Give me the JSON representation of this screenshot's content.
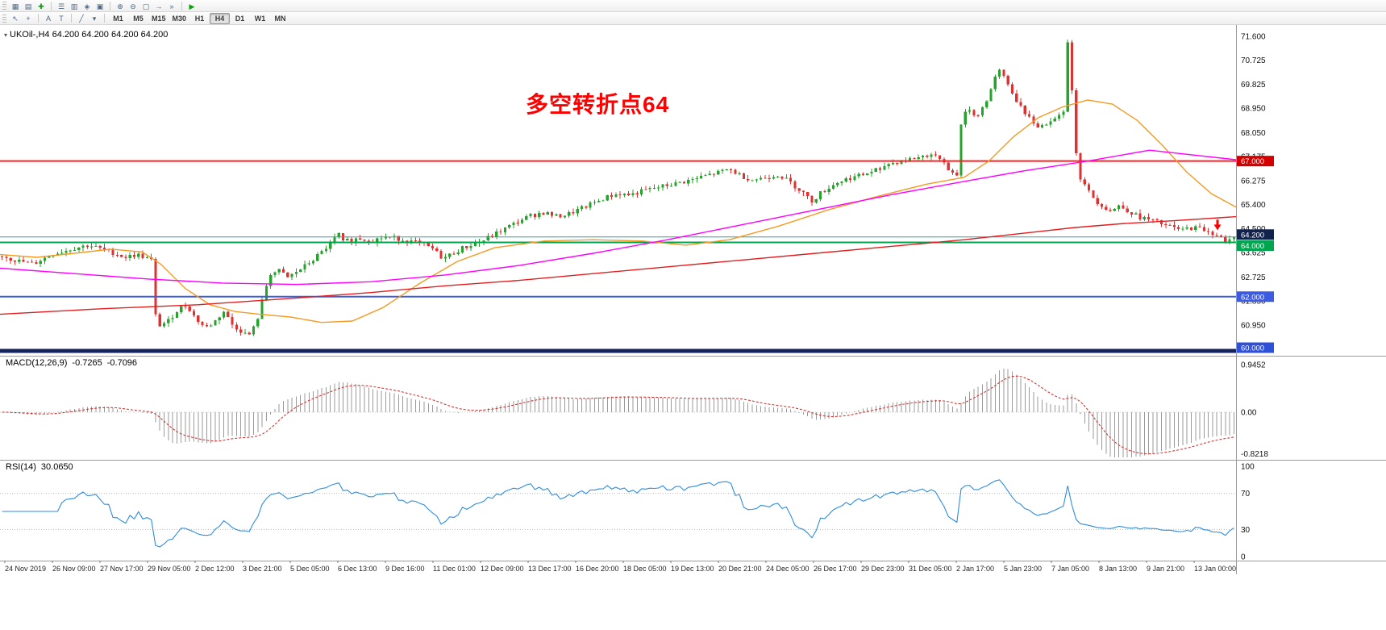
{
  "toolbar_top": {
    "groups": [
      [
        {
          "name": "new-chart",
          "glyph": "▦"
        },
        {
          "name": "chart-profiles",
          "glyph": "▤"
        },
        {
          "name": "new-order",
          "glyph": "✚",
          "color": "#0d9d0d"
        }
      ],
      [
        {
          "name": "market-watch",
          "glyph": "☰"
        },
        {
          "name": "data-window",
          "glyph": "▥"
        },
        {
          "name": "navigator",
          "glyph": "◈"
        },
        {
          "name": "terminal",
          "glyph": "▣"
        }
      ],
      [
        {
          "name": "zoom-in",
          "glyph": "⊕"
        },
        {
          "name": "zoom-out",
          "glyph": "⊖"
        },
        {
          "name": "tile-windows",
          "glyph": "▢"
        },
        {
          "name": "auto-scroll",
          "glyph": "→"
        },
        {
          "name": "chart-shift",
          "glyph": "»"
        }
      ],
      [
        {
          "name": "auto-trading",
          "glyph": "▶",
          "color": "#0d9d0d"
        }
      ]
    ]
  },
  "toolbar_periods": {
    "left_groups": [
      [
        {
          "name": "cursor",
          "glyph": "↖"
        },
        {
          "name": "crosshair",
          "glyph": "+"
        }
      ],
      [
        {
          "name": "text-annotation",
          "glyph": "A"
        },
        {
          "name": "text-label",
          "glyph": "T"
        }
      ],
      [
        {
          "name": "draw-trendline",
          "glyph": "╱"
        },
        {
          "name": "shapes-dropdown",
          "glyph": "▾"
        }
      ]
    ],
    "timeframes": [
      {
        "label": "M1",
        "active": false
      },
      {
        "label": "M5",
        "active": false
      },
      {
        "label": "M15",
        "active": false
      },
      {
        "label": "M30",
        "active": false
      },
      {
        "label": "H1",
        "active": false
      },
      {
        "label": "H4",
        "active": true
      },
      {
        "label": "D1",
        "active": false
      },
      {
        "label": "W1",
        "active": false
      },
      {
        "label": "MN",
        "active": false
      }
    ]
  },
  "chart": {
    "header_text": "UKOil-,H4 64.200 64.200 64.200 64.200",
    "dropdown_glyph": "▾",
    "annotation": {
      "text": "多空转折点64",
      "color": "#FF0000"
    }
  },
  "chart_data": {
    "type": "candlestick",
    "symbol": "UKOil-",
    "period": "H4",
    "ohlc_header": [
      "64.200",
      "64.200",
      "64.200",
      "64.200"
    ],
    "candles_count": 290,
    "y_axis": {
      "min": 60.0,
      "max": 71.6,
      "labels": [
        "71.600",
        "70.725",
        "69.825",
        "68.950",
        "68.050",
        "67.175",
        "66.275",
        "65.400",
        "64.500",
        "63.625",
        "62.725",
        "61.850",
        "60.950"
      ]
    },
    "x_axis": {
      "labels": [
        "24 Nov 2019",
        "26 Nov 09:00",
        "27 Nov 17:00",
        "29 Nov 05:00",
        "2 Dec 12:00",
        "3 Dec 21:00",
        "5 Dec 05:00",
        "6 Dec 13:00",
        "9 Dec 16:00",
        "11 Dec 01:00",
        "12 Dec 09:00",
        "13 Dec 17:00",
        "16 Dec 20:00",
        "18 Dec 05:00",
        "19 Dec 13:00",
        "20 Dec 21:00",
        "24 Dec 05:00",
        "26 Dec 17:00",
        "29 Dec 23:00",
        "31 Dec 05:00",
        "2 Jan 17:00",
        "5 Jan 23:00",
        "7 Jan 05:00",
        "8 Jan 13:00",
        "9 Jan 21:00",
        "13 Jan 00:00"
      ]
    },
    "price_path": [
      [
        0,
        63.5
      ],
      [
        0.01,
        63.35
      ],
      [
        0.025,
        63.2
      ],
      [
        0.04,
        63.55
      ],
      [
        0.055,
        63.75
      ],
      [
        0.07,
        63.9
      ],
      [
        0.085,
        63.7
      ],
      [
        0.1,
        63.45
      ],
      [
        0.11,
        63.55
      ],
      [
        0.1211,
        63.35
      ],
      [
        0.1246,
        61.3
      ],
      [
        0.128,
        60.95
      ],
      [
        0.135,
        61.1
      ],
      [
        0.143,
        61.55
      ],
      [
        0.15,
        61.7
      ],
      [
        0.157,
        61.2
      ],
      [
        0.165,
        60.85
      ],
      [
        0.172,
        61.05
      ],
      [
        0.18,
        61.45
      ],
      [
        0.187,
        60.95
      ],
      [
        0.195,
        60.7
      ],
      [
        0.2,
        60.55
      ],
      [
        0.205,
        60.9
      ],
      [
        0.209,
        61.4
      ],
      [
        0.213,
        62.2
      ],
      [
        0.218,
        62.85
      ],
      [
        0.225,
        62.95
      ],
      [
        0.232,
        62.7
      ],
      [
        0.24,
        62.95
      ],
      [
        0.248,
        63.2
      ],
      [
        0.255,
        63.45
      ],
      [
        0.262,
        63.75
      ],
      [
        0.268,
        64.05
      ],
      [
        0.273,
        64.3
      ],
      [
        0.28,
        64.05
      ],
      [
        0.29,
        64.15
      ],
      [
        0.3,
        64.05
      ],
      [
        0.31,
        64.2
      ],
      [
        0.32,
        64.15
      ],
      [
        0.33,
        64.05
      ],
      [
        0.34,
        63.95
      ],
      [
        0.35,
        63.75
      ],
      [
        0.358,
        63.4
      ],
      [
        0.364,
        63.55
      ],
      [
        0.372,
        63.75
      ],
      [
        0.38,
        63.9
      ],
      [
        0.39,
        64.05
      ],
      [
        0.4,
        64.3
      ],
      [
        0.41,
        64.55
      ],
      [
        0.42,
        64.8
      ],
      [
        0.43,
        65.0
      ],
      [
        0.44,
        65.1
      ],
      [
        0.45,
        64.95
      ],
      [
        0.46,
        65.05
      ],
      [
        0.47,
        65.25
      ],
      [
        0.48,
        65.45
      ],
      [
        0.49,
        65.65
      ],
      [
        0.5,
        65.8
      ],
      [
        0.51,
        65.75
      ],
      [
        0.52,
        65.9
      ],
      [
        0.53,
        66.0
      ],
      [
        0.54,
        66.1
      ],
      [
        0.55,
        66.2
      ],
      [
        0.56,
        66.3
      ],
      [
        0.57,
        66.45
      ],
      [
        0.58,
        66.55
      ],
      [
        0.59,
        66.7
      ],
      [
        0.6,
        66.45
      ],
      [
        0.61,
        66.3
      ],
      [
        0.62,
        66.4
      ],
      [
        0.63,
        66.5
      ],
      [
        0.64,
        66.2
      ],
      [
        0.65,
        65.85
      ],
      [
        0.657,
        65.5
      ],
      [
        0.664,
        65.8
      ],
      [
        0.672,
        66.05
      ],
      [
        0.68,
        66.25
      ],
      [
        0.69,
        66.4
      ],
      [
        0.7,
        66.5
      ],
      [
        0.71,
        66.7
      ],
      [
        0.72,
        66.9
      ],
      [
        0.73,
        67.0
      ],
      [
        0.74,
        67.1
      ],
      [
        0.75,
        67.2
      ],
      [
        0.758,
        67.3
      ],
      [
        0.764,
        67.0
      ],
      [
        0.771,
        66.55
      ],
      [
        0.7751,
        66.45
      ],
      [
        0.7786,
        68.4
      ],
      [
        0.782,
        68.75
      ],
      [
        0.786,
        68.95
      ],
      [
        0.79,
        68.6
      ],
      [
        0.795,
        68.9
      ],
      [
        0.8,
        69.3
      ],
      [
        0.805,
        69.9
      ],
      [
        0.809,
        70.35
      ],
      [
        0.813,
        70.15
      ],
      [
        0.818,
        69.7
      ],
      [
        0.824,
        69.2
      ],
      [
        0.83,
        68.85
      ],
      [
        0.836,
        68.45
      ],
      [
        0.842,
        68.25
      ],
      [
        0.848,
        68.4
      ],
      [
        0.853,
        68.6
      ],
      [
        0.8581,
        68.75
      ],
      [
        0.8616,
        68.9
      ],
      [
        0.8651,
        71.45
      ],
      [
        0.8685,
        69.6
      ],
      [
        0.872,
        67.3
      ],
      [
        0.8754,
        66.35
      ],
      [
        0.88,
        66.0
      ],
      [
        0.885,
        65.7
      ],
      [
        0.89,
        65.45
      ],
      [
        0.9,
        65.15
      ],
      [
        0.907,
        65.35
      ],
      [
        0.915,
        65.15
      ],
      [
        0.922,
        64.95
      ],
      [
        0.93,
        64.85
      ],
      [
        0.94,
        64.7
      ],
      [
        0.95,
        64.55
      ],
      [
        0.958,
        64.45
      ],
      [
        0.966,
        64.55
      ],
      [
        0.974,
        64.5
      ],
      [
        0.982,
        64.35
      ],
      [
        0.988,
        64.25
      ],
      [
        0.993,
        63.95
      ],
      [
        1,
        64.2
      ]
    ],
    "moving_averages": [
      {
        "name": "ma-fast-orange",
        "color": "#F59A23",
        "points": [
          [
            0,
            63.55
          ],
          [
            0.03,
            63.45
          ],
          [
            0.06,
            63.6
          ],
          [
            0.09,
            63.75
          ],
          [
            0.115,
            63.65
          ],
          [
            0.13,
            63.2
          ],
          [
            0.15,
            62.3
          ],
          [
            0.17,
            61.7
          ],
          [
            0.19,
            61.45
          ],
          [
            0.21,
            61.35
          ],
          [
            0.235,
            61.25
          ],
          [
            0.26,
            61.05
          ],
          [
            0.285,
            61.1
          ],
          [
            0.31,
            61.6
          ],
          [
            0.34,
            62.5
          ],
          [
            0.37,
            63.3
          ],
          [
            0.4,
            63.8
          ],
          [
            0.44,
            64.05
          ],
          [
            0.48,
            64.1
          ],
          [
            0.52,
            64.05
          ],
          [
            0.555,
            63.9
          ],
          [
            0.59,
            64.1
          ],
          [
            0.63,
            64.6
          ],
          [
            0.67,
            65.2
          ],
          [
            0.71,
            65.7
          ],
          [
            0.75,
            66.15
          ],
          [
            0.78,
            66.4
          ],
          [
            0.8,
            67.0
          ],
          [
            0.82,
            67.9
          ],
          [
            0.84,
            68.6
          ],
          [
            0.86,
            69.0
          ],
          [
            0.88,
            69.25
          ],
          [
            0.9,
            69.1
          ],
          [
            0.92,
            68.5
          ],
          [
            0.94,
            67.6
          ],
          [
            0.96,
            66.6
          ],
          [
            0.98,
            65.8
          ],
          [
            1,
            65.3
          ]
        ]
      },
      {
        "name": "ma-mid-magenta",
        "color": "#FF00FF",
        "points": [
          [
            0,
            63.05
          ],
          [
            0.06,
            62.85
          ],
          [
            0.12,
            62.65
          ],
          [
            0.18,
            62.5
          ],
          [
            0.24,
            62.45
          ],
          [
            0.3,
            62.55
          ],
          [
            0.36,
            62.8
          ],
          [
            0.42,
            63.15
          ],
          [
            0.48,
            63.6
          ],
          [
            0.54,
            64.1
          ],
          [
            0.6,
            64.65
          ],
          [
            0.66,
            65.2
          ],
          [
            0.72,
            65.75
          ],
          [
            0.78,
            66.25
          ],
          [
            0.83,
            66.65
          ],
          [
            0.88,
            67.0
          ],
          [
            0.93,
            67.4
          ],
          [
            1,
            67.05
          ]
        ]
      },
      {
        "name": "ma-slow-red",
        "color": "#E31E1E",
        "points": [
          [
            0,
            61.35
          ],
          [
            0.08,
            61.55
          ],
          [
            0.16,
            61.7
          ],
          [
            0.24,
            61.95
          ],
          [
            0.3,
            62.15
          ],
          [
            0.36,
            62.4
          ],
          [
            0.42,
            62.6
          ],
          [
            0.48,
            62.85
          ],
          [
            0.54,
            63.1
          ],
          [
            0.6,
            63.35
          ],
          [
            0.66,
            63.6
          ],
          [
            0.72,
            63.85
          ],
          [
            0.78,
            64.1
          ],
          [
            0.83,
            64.35
          ],
          [
            0.87,
            64.55
          ],
          [
            0.91,
            64.7
          ],
          [
            0.95,
            64.8
          ],
          [
            1,
            64.95
          ]
        ]
      }
    ],
    "hlines": [
      {
        "label": "67.000",
        "price": 67.0,
        "line_color": "#FF2020",
        "badge_color": "#D40000",
        "thickness": 2,
        "badge_dy": 0
      },
      {
        "label": "64.200",
        "price": 64.2,
        "line_color": "#2E9E9E",
        "badge_color": "#11224D",
        "thickness": 1,
        "badge_dy": -3
      },
      {
        "label": "64.000",
        "price": 64.0,
        "line_color": "#00A550",
        "badge_color": "#00A550",
        "thickness": 2,
        "badge_dy": 4
      },
      {
        "label": "62.000",
        "price": 62.0,
        "line_color": "#3C5BE0",
        "badge_color": "#3C5BE0",
        "thickness": 2,
        "badge_dy": 0
      },
      {
        "label": "60.000",
        "price": 60.0,
        "line_color": "#16245E",
        "badge_color": "#2F51D8",
        "thickness": 5,
        "badge_dy": -4
      }
    ],
    "colors": {
      "up": "#27A22D",
      "down": "#E03131",
      "grid": "#c8c8c8",
      "separator": "#9a9a9a"
    },
    "macd": {
      "label": "MACD(12,26,9)",
      "value_main": "-0.7265",
      "value_signal": "-0.7096",
      "fast": 12,
      "slow": 26,
      "signal": 9,
      "scale": [
        "0.9452",
        "0.00",
        "-0.8218"
      ],
      "histogram_color": "#9a9a9a",
      "signal_color": "#D32525"
    },
    "rsi": {
      "label": "RSI(14)",
      "value": "30.0650",
      "period": 14,
      "levels": [
        100,
        70,
        30,
        0
      ],
      "dotted_levels": [
        70,
        30
      ],
      "line_color": "#2D8CE0"
    },
    "sell_arrow": {
      "index_frac": 0.985,
      "price": 64.45,
      "color": "#FF0000"
    }
  }
}
